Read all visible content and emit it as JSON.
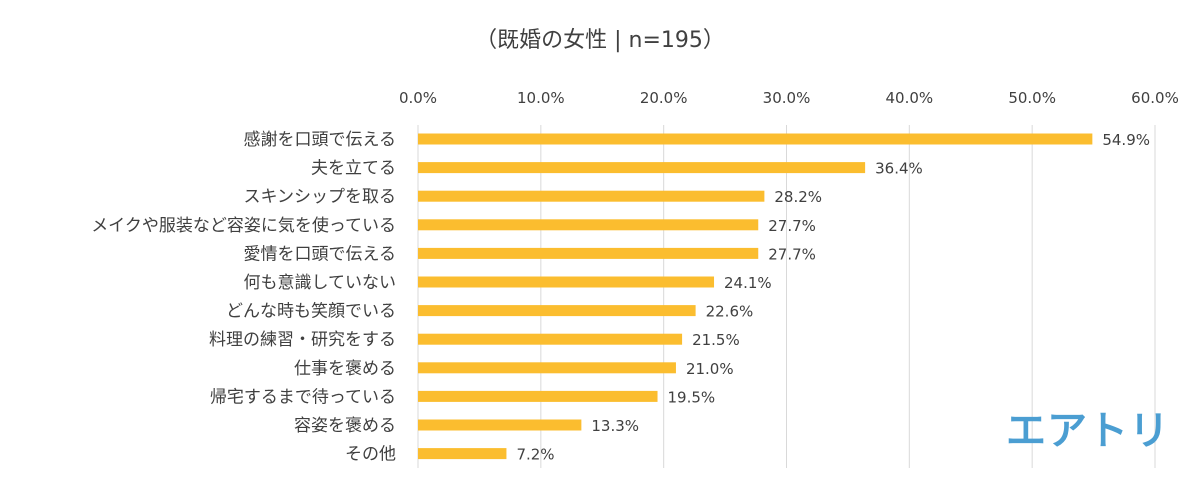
{
  "chart_data": {
    "type": "bar",
    "orientation": "horizontal",
    "title": "（既婚の女性 | n=195）",
    "categories": [
      "感謝を口頭で伝える",
      "夫を立てる",
      "スキンシップを取る",
      "メイクや服装など容姿に気を使っている",
      "愛情を口頭で伝える",
      "何も意識していない",
      "どんな時も笑顔でいる",
      "料理の練習・研究をする",
      "仕事を褒める",
      "帰宅するまで待っている",
      "容姿を褒める",
      "その他"
    ],
    "values": [
      54.9,
      36.4,
      28.2,
      27.7,
      27.7,
      24.1,
      22.6,
      21.5,
      21.0,
      19.5,
      13.3,
      7.2
    ],
    "value_labels": [
      "54.9%",
      "36.4%",
      "28.2%",
      "27.7%",
      "27.7%",
      "24.1%",
      "22.6%",
      "21.5%",
      "21.0%",
      "19.5%",
      "13.3%",
      "7.2%"
    ],
    "xlim": [
      0,
      60
    ],
    "x_ticks": [
      0,
      10,
      20,
      30,
      40,
      50,
      60
    ],
    "x_tick_labels": [
      "0.0%",
      "10.0%",
      "20.0%",
      "30.0%",
      "40.0%",
      "50.0%",
      "60.0%"
    ],
    "axis_position": "top",
    "grid": true,
    "bar_color": "#fbbd2f",
    "grid_color": "#d9d9d9"
  },
  "brand": {
    "logo_text": "エアトリ",
    "color": "#4b9ed2"
  }
}
